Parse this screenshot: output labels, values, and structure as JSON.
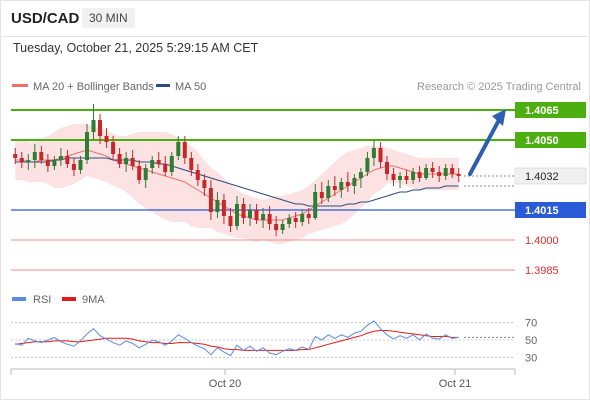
{
  "header": {
    "symbol": "USD/CAD",
    "timeframe": "30 MIN"
  },
  "datetime": "Tuesday, October 21, 2025 5:29:15 AM CET",
  "legend": {
    "ma20": "MA 20 + Bollinger Bands",
    "ma50": "MA 50",
    "rsi": "RSI",
    "rsi_ma": "9MA"
  },
  "copyright": "Research © 2025 Trading Central",
  "colors": {
    "bull": "#2e7d32",
    "bear": "#c62828",
    "ma20": "#f06d6d",
    "bands": "#fbd5d5",
    "ma50": "#2b4c7e",
    "resistance": "#4caf0f",
    "support": "#2a5ad7",
    "support_faint": "#f28e8e",
    "rsi": "#5b8be0",
    "rsi_ma": "#e31a1a",
    "arrow": "#2d5fb0"
  },
  "chart_data": {
    "type": "candlestick",
    "symbol": "USD/CAD",
    "timeframe": "30 MIN",
    "ylim": [
      1.3978,
      1.4074
    ],
    "x_ticks": [
      "Oct 20",
      "Oct 21"
    ],
    "current_price": "1.4032",
    "levels": [
      {
        "value": 1.4065,
        "label": "1.4065",
        "kind": "resistance"
      },
      {
        "value": 1.405,
        "label": "1.4050",
        "kind": "resistance"
      },
      {
        "value": 1.4015,
        "label": "1.4015",
        "kind": "support"
      },
      {
        "value": 1.4,
        "label": "1.4000",
        "kind": "support_faint"
      },
      {
        "value": 1.3985,
        "label": "1.3985",
        "kind": "support_faint"
      }
    ],
    "candles": [
      [
        1.4043,
        1.4046,
        1.4038,
        1.4041
      ],
      [
        1.4041,
        1.4044,
        1.4036,
        1.4039
      ],
      [
        1.4039,
        1.4043,
        1.4035,
        1.404
      ],
      [
        1.404,
        1.4048,
        1.4036,
        1.4044
      ],
      [
        1.4044,
        1.4047,
        1.4038,
        1.404
      ],
      [
        1.404,
        1.4043,
        1.4034,
        1.4037
      ],
      [
        1.4037,
        1.4042,
        1.4035,
        1.404
      ],
      [
        1.404,
        1.4046,
        1.4037,
        1.4042
      ],
      [
        1.4042,
        1.4045,
        1.4036,
        1.4038
      ],
      [
        1.4038,
        1.4041,
        1.4032,
        1.4035
      ],
      [
        1.4035,
        1.4042,
        1.4033,
        1.404
      ],
      [
        1.404,
        1.4058,
        1.4038,
        1.4054
      ],
      [
        1.4054,
        1.4068,
        1.405,
        1.406
      ],
      [
        1.406,
        1.4063,
        1.4048,
        1.4052
      ],
      [
        1.4052,
        1.4056,
        1.4046,
        1.4049
      ],
      [
        1.4049,
        1.4052,
        1.404,
        1.4043
      ],
      [
        1.4043,
        1.4046,
        1.4036,
        1.4038
      ],
      [
        1.4038,
        1.4044,
        1.4034,
        1.4041
      ],
      [
        1.4041,
        1.4045,
        1.4035,
        1.4037
      ],
      [
        1.4037,
        1.404,
        1.4028,
        1.403
      ],
      [
        1.403,
        1.4038,
        1.4026,
        1.4036
      ],
      [
        1.4036,
        1.4042,
        1.4033,
        1.404
      ],
      [
        1.404,
        1.4044,
        1.4036,
        1.4038
      ],
      [
        1.4038,
        1.4042,
        1.4032,
        1.4034
      ],
      [
        1.4034,
        1.4044,
        1.4032,
        1.4042
      ],
      [
        1.4042,
        1.4052,
        1.404,
        1.4049
      ],
      [
        1.4049,
        1.4052,
        1.4038,
        1.4041
      ],
      [
        1.4041,
        1.4044,
        1.4032,
        1.4035
      ],
      [
        1.4035,
        1.4038,
        1.4027,
        1.403
      ],
      [
        1.403,
        1.4033,
        1.4022,
        1.4026
      ],
      [
        1.4026,
        1.403,
        1.401,
        1.4014
      ],
      [
        1.4014,
        1.4024,
        1.4011,
        1.402
      ],
      [
        1.402,
        1.4023,
        1.4008,
        1.4012
      ],
      [
        1.4012,
        1.4016,
        1.4004,
        1.4007
      ],
      [
        1.4007,
        1.4022,
        1.4005,
        1.4018
      ],
      [
        1.4018,
        1.4021,
        1.4008,
        1.4011
      ],
      [
        1.4011,
        1.4018,
        1.4007,
        1.4015
      ],
      [
        1.4015,
        1.4018,
        1.4008,
        1.401
      ],
      [
        1.401,
        1.4016,
        1.4006,
        1.4013
      ],
      [
        1.4013,
        1.4017,
        1.4005,
        1.4008
      ],
      [
        1.4008,
        1.4012,
        1.4002,
        1.4005
      ],
      [
        1.4005,
        1.401,
        1.4003,
        1.4008
      ],
      [
        1.4008,
        1.4013,
        1.4006,
        1.4011
      ],
      [
        1.4011,
        1.4014,
        1.4006,
        1.4009
      ],
      [
        1.4009,
        1.4015,
        1.4007,
        1.4013
      ],
      [
        1.4013,
        1.4016,
        1.4008,
        1.4011
      ],
      [
        1.4011,
        1.4028,
        1.401,
        1.4024
      ],
      [
        1.4024,
        1.4029,
        1.4018,
        1.4021
      ],
      [
        1.4021,
        1.403,
        1.4019,
        1.4027
      ],
      [
        1.4027,
        1.4032,
        1.4022,
        1.4025
      ],
      [
        1.4025,
        1.4031,
        1.4021,
        1.4029
      ],
      [
        1.4029,
        1.4034,
        1.4024,
        1.4027
      ],
      [
        1.4027,
        1.4033,
        1.4023,
        1.4031
      ],
      [
        1.4031,
        1.4036,
        1.4026,
        1.4034
      ],
      [
        1.4034,
        1.4044,
        1.4032,
        1.4041
      ],
      [
        1.4041,
        1.405,
        1.4037,
        1.4046
      ],
      [
        1.4046,
        1.4049,
        1.4036,
        1.4039
      ],
      [
        1.4039,
        1.4042,
        1.403,
        1.4033
      ],
      [
        1.4033,
        1.4036,
        1.4027,
        1.403
      ],
      [
        1.403,
        1.4034,
        1.4026,
        1.4032
      ],
      [
        1.4032,
        1.4035,
        1.4028,
        1.403
      ],
      [
        1.403,
        1.4036,
        1.4028,
        1.4034
      ],
      [
        1.4034,
        1.4037,
        1.4029,
        1.4031
      ],
      [
        1.4031,
        1.4038,
        1.403,
        1.4036
      ],
      [
        1.4036,
        1.4039,
        1.4031,
        1.4034
      ],
      [
        1.4034,
        1.4037,
        1.4029,
        1.4032
      ],
      [
        1.4032,
        1.4038,
        1.403,
        1.4036
      ],
      [
        1.4036,
        1.4038,
        1.4031,
        1.4033
      ],
      [
        1.4033,
        1.4036,
        1.4029,
        1.4032
      ]
    ],
    "ma20": [
      1.404,
      1.404,
      1.4039,
      1.4039,
      1.404,
      1.404,
      1.404,
      1.4041,
      1.4042,
      1.4043,
      1.4044,
      1.4045,
      1.4044,
      1.4043,
      1.4042,
      1.404,
      1.4039,
      1.4038,
      1.4037,
      1.4036,
      1.4035,
      1.4034,
      1.4033,
      1.4032,
      1.4031,
      1.403,
      1.4029,
      1.4027,
      1.4025,
      1.4023,
      1.4021,
      1.4019,
      1.4017,
      1.4015,
      1.4013,
      1.4012,
      1.4011,
      1.401,
      1.401,
      1.401,
      1.401,
      1.401,
      1.4011,
      1.4012,
      1.4013,
      1.4015,
      1.4017,
      1.4019,
      1.4021,
      1.4023,
      1.4025,
      1.4027,
      1.4029,
      1.4031,
      1.4033,
      1.4035,
      1.4036,
      1.4037,
      1.4037,
      1.4036,
      1.4035,
      1.4034,
      1.4033,
      1.4033,
      1.4033,
      1.4033,
      1.4033,
      1.4033,
      1.4033
    ],
    "bb_upper": [
      1.405,
      1.405,
      1.4049,
      1.4049,
      1.4051,
      1.4052,
      1.4054,
      1.4056,
      1.4057,
      1.4058,
      1.4058,
      1.4058,
      1.4057,
      1.4056,
      1.4055,
      1.4053,
      1.4052,
      1.4052,
      1.4053,
      1.4054,
      1.4054,
      1.4054,
      1.4054,
      1.4054,
      1.4053,
      1.4051,
      1.4049,
      1.4047,
      1.4044,
      1.404,
      1.4036,
      1.4034,
      1.4031,
      1.4028,
      1.4025,
      1.4023,
      1.4022,
      1.4021,
      1.402,
      1.4021,
      1.4022,
      1.4022,
      1.4023,
      1.4024,
      1.4025,
      1.4027,
      1.403,
      1.4033,
      1.4036,
      1.4039,
      1.4042,
      1.4044,
      1.4045,
      1.4046,
      1.4047,
      1.4047,
      1.4047,
      1.4046,
      1.4045,
      1.4044,
      1.4043,
      1.4042,
      1.4041,
      1.4041,
      1.4041,
      1.4041,
      1.4041,
      1.4041,
      1.4041
    ],
    "bb_lower": [
      1.403,
      1.403,
      1.4029,
      1.4029,
      1.4029,
      1.4028,
      1.4026,
      1.4026,
      1.4027,
      1.4028,
      1.403,
      1.4032,
      1.4031,
      1.403,
      1.4029,
      1.4027,
      1.4026,
      1.4024,
      1.4021,
      1.4018,
      1.4016,
      1.4014,
      1.4012,
      1.401,
      1.4009,
      1.4009,
      1.4009,
      1.4007,
      1.4006,
      1.4006,
      1.4006,
      1.4004,
      1.4003,
      1.4002,
      1.4001,
      1.4001,
      1.4,
      1.3999,
      1.4,
      1.3999,
      1.3998,
      1.3998,
      1.3999,
      1.4,
      1.4001,
      1.4003,
      1.4004,
      1.4005,
      1.4006,
      1.4007,
      1.4008,
      1.401,
      1.4013,
      1.4016,
      1.4019,
      1.4023,
      1.4025,
      1.4028,
      1.4029,
      1.4028,
      1.4027,
      1.4026,
      1.4025,
      1.4025,
      1.4025,
      1.4025,
      1.4025,
      1.4025,
      1.4025
    ],
    "ma50": [
      1.4039,
      1.4039,
      1.4039,
      1.4039,
      1.4039,
      1.4039,
      1.404,
      1.404,
      1.4041,
      1.4041,
      1.4041,
      1.4041,
      1.4041,
      1.4041,
      1.4041,
      1.404,
      1.404,
      1.404,
      1.404,
      1.4039,
      1.4039,
      1.4039,
      1.4038,
      1.4038,
      1.4037,
      1.4036,
      1.4035,
      1.4034,
      1.4033,
      1.4032,
      1.4031,
      1.403,
      1.4029,
      1.4028,
      1.4027,
      1.4026,
      1.4025,
      1.4024,
      1.4023,
      1.4022,
      1.4021,
      1.402,
      1.4019,
      1.4018,
      1.4018,
      1.4017,
      1.4017,
      1.4017,
      1.4017,
      1.4017,
      1.4017,
      1.4018,
      1.4018,
      1.4019,
      1.4019,
      1.402,
      1.4021,
      1.4022,
      1.4023,
      1.4024,
      1.4024,
      1.4025,
      1.4025,
      1.4026,
      1.4026,
      1.4026,
      1.4027,
      1.4027,
      1.4027
    ],
    "projection": {
      "from": 1.4033,
      "to": 1.4065
    },
    "rsi": {
      "ticks": [
        "70",
        "50",
        "30"
      ],
      "ylim": [
        20,
        80
      ],
      "rsi": [
        46,
        44,
        52,
        49,
        47,
        50,
        53,
        48,
        45,
        43,
        49,
        57,
        63,
        55,
        51,
        47,
        44,
        49,
        46,
        41,
        45,
        50,
        48,
        44,
        49,
        56,
        52,
        47,
        43,
        40,
        33,
        41,
        36,
        32,
        44,
        38,
        43,
        37,
        41,
        35,
        33,
        37,
        40,
        38,
        42,
        39,
        54,
        50,
        56,
        52,
        56,
        53,
        58,
        60,
        67,
        72,
        63,
        56,
        51,
        55,
        52,
        56,
        50,
        57,
        52,
        51,
        56,
        52,
        53
      ],
      "ma9": [
        45,
        46,
        47,
        48,
        48,
        48,
        49,
        49,
        49,
        48,
        48,
        49,
        50,
        51,
        52,
        52,
        52,
        52,
        51,
        49,
        48,
        47,
        47,
        46,
        46,
        47,
        47,
        47,
        46,
        45,
        43,
        42,
        40,
        39,
        39,
        38,
        38,
        38,
        38,
        38,
        38,
        38,
        38,
        38,
        39,
        39,
        41,
        43,
        45,
        47,
        49,
        51,
        53,
        55,
        58,
        60,
        61,
        61,
        60,
        59,
        58,
        57,
        56,
        55,
        54,
        54,
        54,
        53,
        53
      ]
    }
  }
}
